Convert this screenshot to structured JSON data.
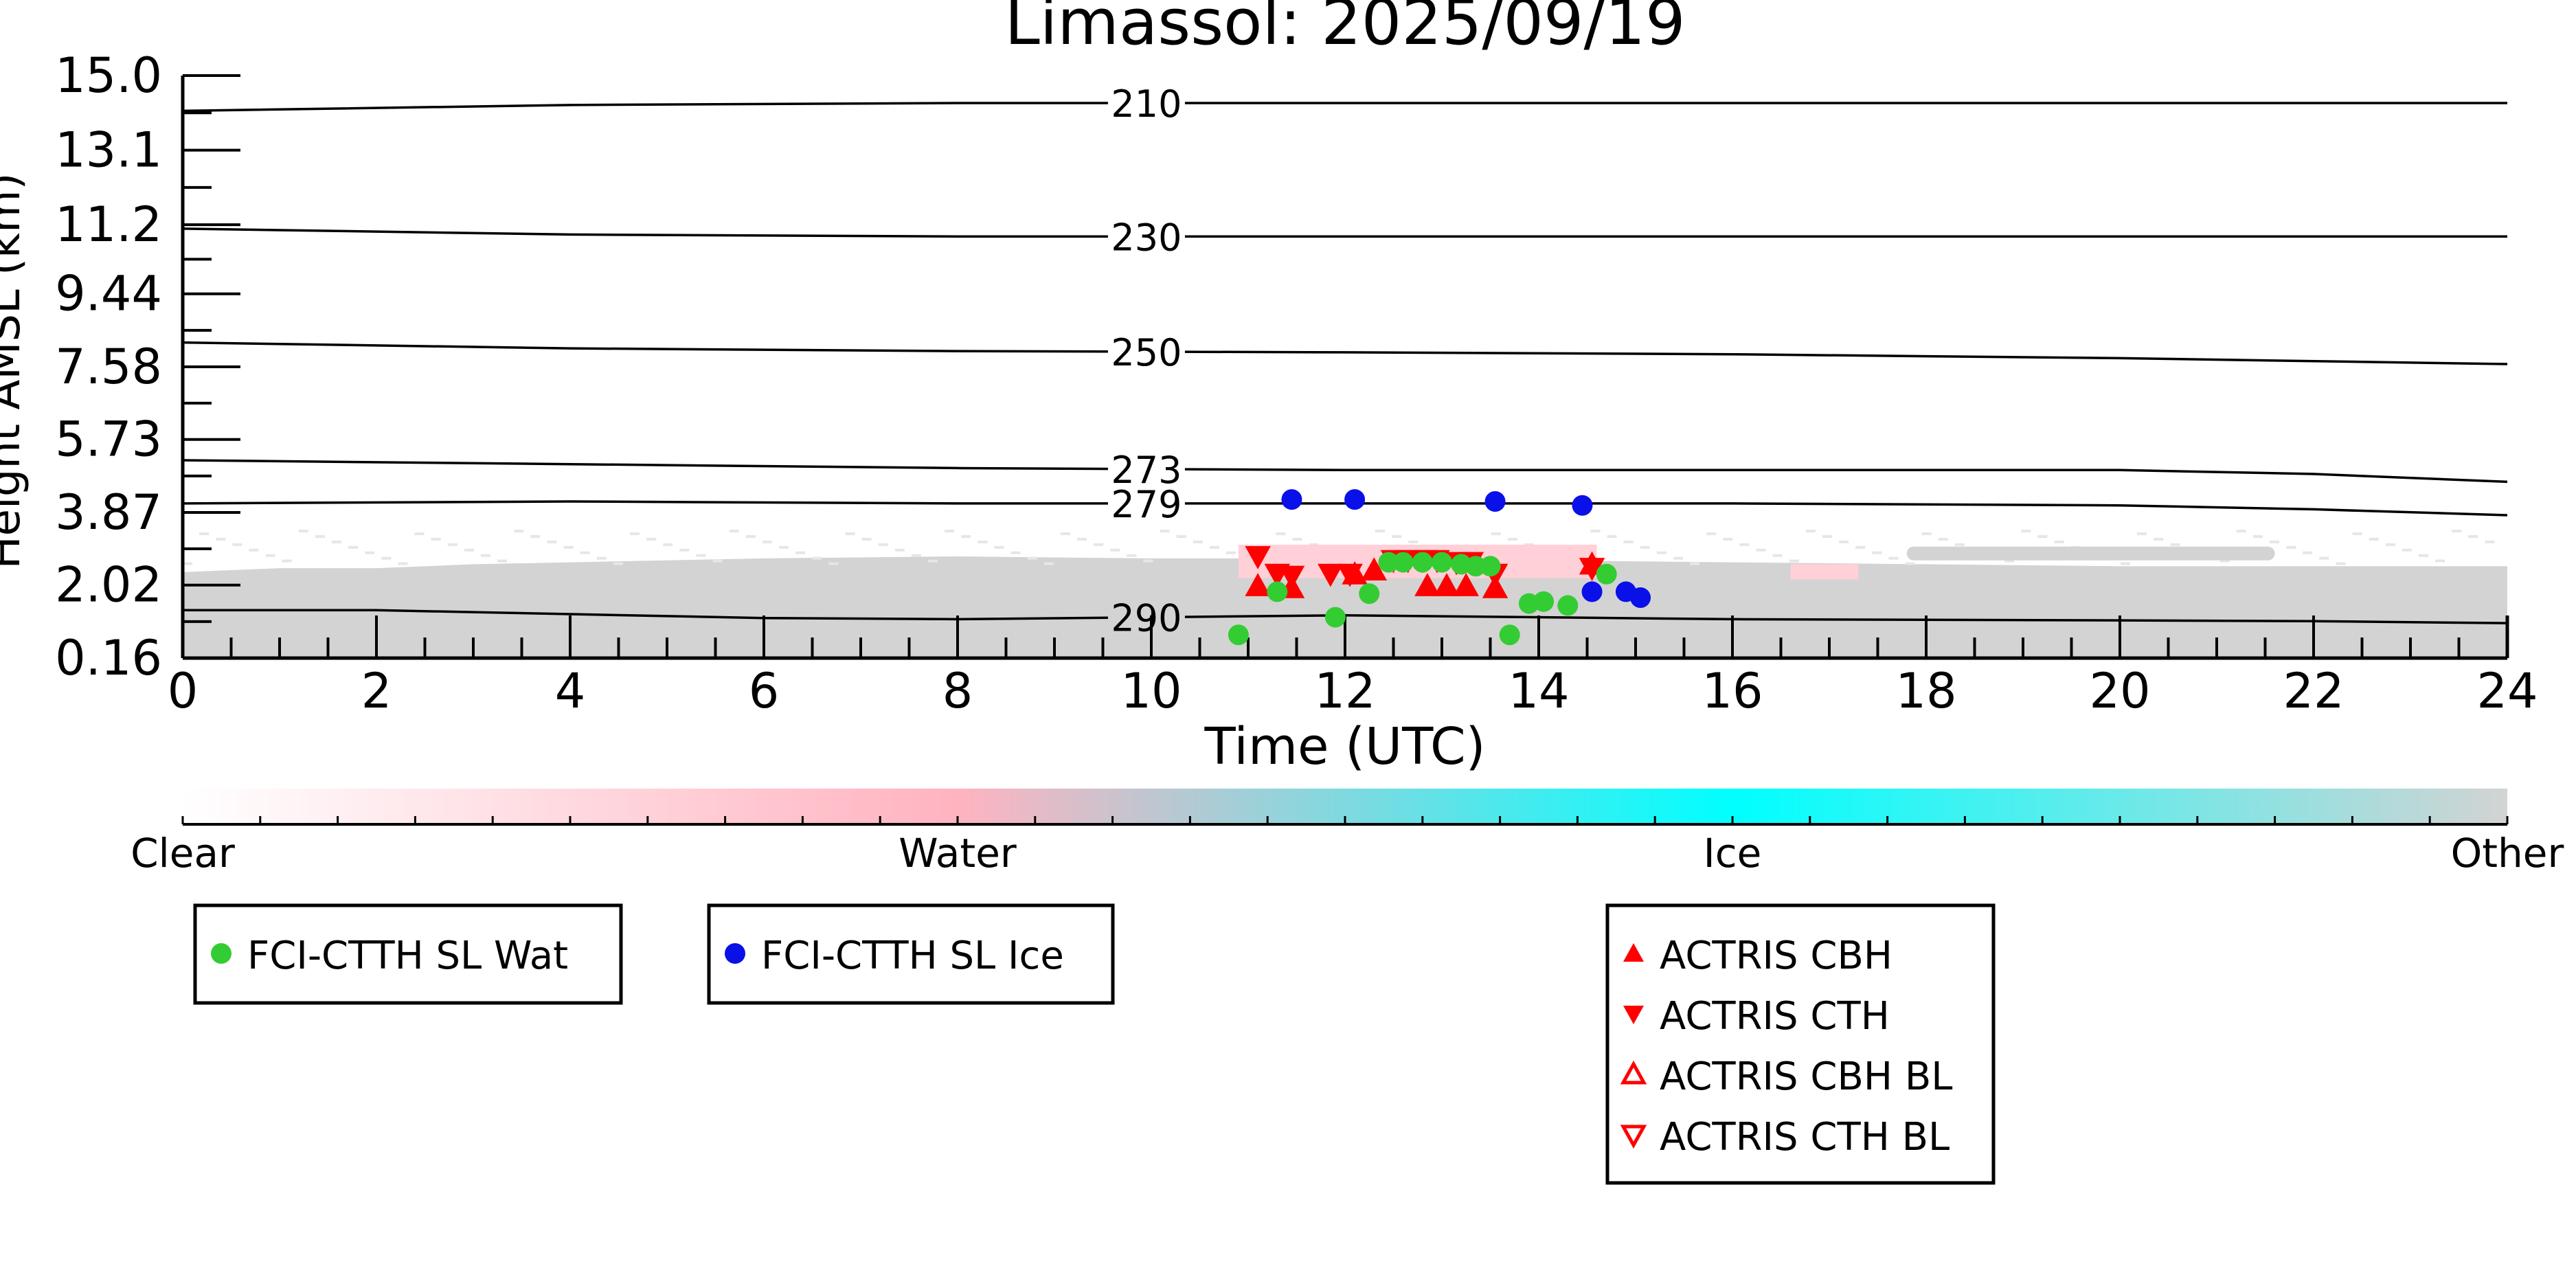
{
  "chart_data": {
    "type": "scatter",
    "title": "Limassol: 2025/09/19",
    "xlabel": "Time (UTC)",
    "ylabel": "Height AMSL (km)",
    "xlim": [
      0,
      24
    ],
    "ylim": [
      0.16,
      15.0
    ],
    "x_ticks": [
      0,
      2,
      4,
      6,
      8,
      10,
      12,
      14,
      16,
      18,
      20,
      22,
      24
    ],
    "y_ticks": [
      "15.0",
      "13.1",
      "11.2",
      "9.44",
      "7.58",
      "5.73",
      "3.87",
      "2.02",
      "0.16"
    ],
    "y_tick_values": [
      15.0,
      13.1,
      11.2,
      9.44,
      7.58,
      5.73,
      3.87,
      2.02,
      0.16
    ],
    "isotherms": [
      {
        "label": "210",
        "x": [
          0,
          4,
          8,
          12,
          16,
          20,
          24
        ],
        "y": [
          14.1,
          14.25,
          14.3,
          14.3,
          14.3,
          14.3,
          14.3
        ]
      },
      {
        "label": "230",
        "x": [
          0,
          4,
          8,
          12,
          16,
          20,
          24
        ],
        "y": [
          11.1,
          10.95,
          10.9,
          10.9,
          10.9,
          10.9,
          10.9
        ]
      },
      {
        "label": "250",
        "x": [
          0,
          4,
          8,
          12,
          16,
          20,
          24
        ],
        "y": [
          8.2,
          8.05,
          7.98,
          7.95,
          7.9,
          7.8,
          7.65
        ]
      },
      {
        "label": "273",
        "x": [
          0,
          4,
          8,
          12,
          16,
          20,
          22,
          24
        ],
        "y": [
          5.2,
          5.1,
          5.0,
          4.95,
          4.95,
          4.95,
          4.85,
          4.65
        ]
      },
      {
        "label": "279",
        "x": [
          0,
          4,
          8,
          12,
          16,
          20,
          22,
          24
        ],
        "y": [
          4.1,
          4.15,
          4.1,
          4.1,
          4.1,
          4.05,
          3.95,
          3.8
        ]
      },
      {
        "label": "290",
        "x": [
          0,
          2,
          4,
          6,
          8,
          10,
          12,
          16,
          20,
          22,
          24
        ],
        "y": [
          1.38,
          1.38,
          1.28,
          1.18,
          1.15,
          1.2,
          1.25,
          1.15,
          1.12,
          1.1,
          1.05
        ]
      }
    ],
    "series": [
      {
        "name": "FCI-CTTH SL Wat",
        "marker": "circle",
        "color": "#33cc33",
        "x": [
          10.9,
          11.3,
          11.9,
          12.25,
          12.45,
          12.6,
          12.8,
          13.0,
          13.2,
          13.35,
          13.5,
          13.7,
          13.9,
          14.05,
          14.3,
          14.7
        ],
        "y": [
          0.75,
          1.85,
          1.2,
          1.8,
          2.6,
          2.6,
          2.6,
          2.6,
          2.55,
          2.5,
          2.5,
          0.75,
          1.55,
          1.6,
          1.5,
          2.3
        ]
      },
      {
        "name": "FCI-CTTH SL Ice",
        "marker": "circle",
        "color": "#0a10e8",
        "x": [
          11.45,
          12.1,
          13.55,
          14.45,
          14.55,
          14.9,
          15.05
        ],
        "y": [
          4.2,
          4.2,
          4.15,
          4.05,
          1.85,
          1.85,
          1.7
        ]
      },
      {
        "name": "ACTRIS CBH",
        "marker": "triangle-up",
        "color": "#ff0000",
        "x": [
          11.1,
          11.45,
          12.1,
          12.3,
          12.85,
          13.05,
          13.25,
          13.55,
          14.55
        ],
        "y": [
          2.0,
          1.95,
          2.3,
          2.4,
          2.0,
          2.0,
          2.0,
          1.95,
          2.55
        ]
      },
      {
        "name": "ACTRIS CTH",
        "marker": "triangle-down",
        "color": "#ff0000",
        "x": [
          11.1,
          11.3,
          11.45,
          11.85,
          12.05,
          12.5,
          12.65,
          12.8,
          12.95,
          13.15,
          13.3,
          13.55,
          14.55
        ],
        "y": [
          2.75,
          2.3,
          2.25,
          2.3,
          2.3,
          2.65,
          2.65,
          2.65,
          2.65,
          2.6,
          2.6,
          2.3,
          2.45
        ]
      },
      {
        "name": "ACTRIS CBH BL",
        "marker": "triangle-up-open",
        "color": "#ff0000",
        "x": [],
        "y": []
      },
      {
        "name": "ACTRIS CTH BL",
        "marker": "triangle-down-open",
        "color": "#ff0000",
        "x": [],
        "y": []
      }
    ],
    "cloud_phase_colorbar": {
      "labels": [
        "Clear",
        "Water",
        "Ice",
        "Other"
      ],
      "colors": [
        "#ffffff",
        "#ffb3c0",
        "#00ffff",
        "#d3d3d3"
      ]
    },
    "legend_groups": [
      {
        "placement": "bottom-left",
        "items": [
          "FCI-CTTH SL Wat"
        ]
      },
      {
        "placement": "bottom-center-left",
        "items": [
          "FCI-CTTH SL Ice"
        ]
      },
      {
        "placement": "bottom-right",
        "items": [
          "ACTRIS CBH",
          "ACTRIS CTH",
          "ACTRIS CBH BL",
          "ACTRIS CTH BL"
        ]
      }
    ],
    "grid": false
  }
}
